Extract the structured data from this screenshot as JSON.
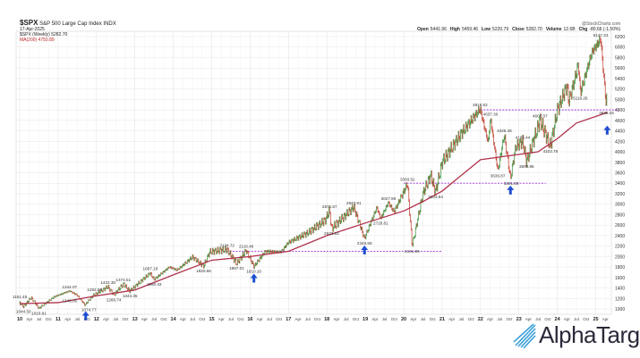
{
  "header": {
    "symbol": "$SPX",
    "name": "S&P 500 Large Cap Index INDX",
    "date": "17-Apr-2025",
    "legend_price": "$SPX (Weekly) 5282.70",
    "legend_ma": "MA(200) 4750.89",
    "source": "@StockCharts.com",
    "ohlc": [
      [
        "Open",
        "5441.96"
      ],
      [
        "High",
        "5459.46"
      ],
      [
        "Low",
        "5220.79"
      ],
      [
        "Close",
        "5282.70"
      ],
      [
        "Volume",
        "12.6B"
      ],
      [
        "Chg",
        "-80.66 (-1.50%)"
      ]
    ]
  },
  "logo": "AlphaTarget",
  "colors": {
    "up": "#2e8b2e",
    "down": "#c0392b",
    "ma": "#b0304a",
    "support": "#9b30d9",
    "arrow": "#1f4fd0"
  },
  "chart_data": {
    "type": "line",
    "title": "$SPX S&P 500 Large Cap Index (Weekly)",
    "ylim": [
      1000,
      6200
    ],
    "yticks": [
      1000,
      1200,
      1400,
      1600,
      1800,
      2000,
      2200,
      2400,
      2600,
      2800,
      3000,
      3200,
      3400,
      3600,
      3800,
      4000,
      4200,
      4400,
      4600,
      4800,
      5000,
      5200,
      5400,
      5600,
      5800,
      6000,
      6200
    ],
    "xlim": [
      2010,
      2025.35
    ],
    "xtick_years": [
      "10",
      "11",
      "12",
      "13",
      "14",
      "15",
      "16",
      "17",
      "18",
      "19",
      "20",
      "21",
      "22",
      "23",
      "24",
      "25"
    ],
    "xtick_months": [
      "Apr",
      "Jul",
      "Oct"
    ],
    "price": [
      [
        2010.0,
        1115
      ],
      [
        2010.1,
        1045
      ],
      [
        2010.3,
        1217
      ],
      [
        2010.5,
        1011
      ],
      [
        2010.9,
        1230
      ],
      [
        2011.3,
        1344
      ],
      [
        2011.5,
        1260
      ],
      [
        2011.7,
        1075
      ],
      [
        2011.9,
        1250
      ],
      [
        2012.3,
        1422
      ],
      [
        2012.45,
        1267
      ],
      [
        2012.7,
        1474
      ],
      [
        2012.87,
        1343
      ],
      [
        2013.4,
        1687
      ],
      [
        2013.5,
        1560
      ],
      [
        2013.9,
        1800
      ],
      [
        2014.1,
        1740
      ],
      [
        2014.5,
        1990
      ],
      [
        2014.79,
        1820
      ],
      [
        2014.95,
        2090
      ],
      [
        2015.4,
        2134
      ],
      [
        2015.65,
        1867
      ],
      [
        2015.9,
        2116
      ],
      [
        2016.1,
        1810
      ],
      [
        2016.4,
        2100
      ],
      [
        2016.8,
        2085
      ],
      [
        2017.0,
        2270
      ],
      [
        2017.5,
        2450
      ],
      [
        2017.95,
        2690
      ],
      [
        2018.07,
        2873
      ],
      [
        2018.12,
        2533
      ],
      [
        2018.7,
        2941
      ],
      [
        2018.98,
        2346
      ],
      [
        2019.3,
        2940
      ],
      [
        2019.4,
        2729
      ],
      [
        2019.6,
        3027
      ],
      [
        2019.75,
        2855
      ],
      [
        2020.1,
        3393
      ],
      [
        2020.22,
        2192
      ],
      [
        2020.5,
        3200
      ],
      [
        2020.7,
        3550
      ],
      [
        2020.83,
        3233
      ],
      [
        2021.0,
        3800
      ],
      [
        2021.5,
        4350
      ],
      [
        2021.99,
        4818
      ],
      [
        2022.2,
        4170
      ],
      [
        2022.26,
        4637
      ],
      [
        2022.45,
        3636
      ],
      [
        2022.62,
        4325
      ],
      [
        2022.78,
        3491
      ],
      [
        2022.92,
        4100
      ],
      [
        2023.1,
        4195
      ],
      [
        2023.2,
        3808
      ],
      [
        2023.55,
        4607
      ],
      [
        2023.82,
        4103
      ],
      [
        2024.0,
        4790
      ],
      [
        2024.25,
        5260
      ],
      [
        2024.3,
        4950
      ],
      [
        2024.55,
        5669
      ],
      [
        2024.6,
        5119
      ],
      [
        2024.9,
        5900
      ],
      [
        2025.13,
        6147
      ],
      [
        2025.28,
        4835
      ],
      [
        2025.3,
        5282
      ]
    ],
    "ma200": [
      [
        2010,
        1100
      ],
      [
        2011,
        1120
      ],
      [
        2012,
        1250
      ],
      [
        2013,
        1360
      ],
      [
        2014,
        1650
      ],
      [
        2015,
        1930
      ],
      [
        2016,
        2000
      ],
      [
        2017,
        2100
      ],
      [
        2018,
        2400
      ],
      [
        2019,
        2640
      ],
      [
        2020,
        2870
      ],
      [
        2020.5,
        3050
      ],
      [
        2021,
        3250
      ],
      [
        2022,
        3850
      ],
      [
        2022.8,
        3930
      ],
      [
        2023.5,
        4000
      ],
      [
        2024,
        4250
      ],
      [
        2024.5,
        4550
      ],
      [
        2025.3,
        4750
      ]
    ],
    "support_lines": [
      {
        "value": 2100,
        "from": 2015.3,
        "to": 2021.0
      },
      {
        "value": 3400,
        "from": 2020.0,
        "to": 2023.7
      },
      {
        "value": 4800,
        "from": 2022.0,
        "to": 2025.6
      }
    ],
    "arrows": [
      2011.72,
      2016.1,
      2018.98,
      2022.78,
      2025.3
    ],
    "annotations": [
      {
        "x": 2010.0,
        "y": 1151.45,
        "text": "1151.45",
        "pos": "above"
      },
      {
        "x": 2010.1,
        "y": 1044.5,
        "text": "1044.50",
        "pos": "below"
      },
      {
        "x": 2010.5,
        "y": 1010.91,
        "text": "1010.91",
        "pos": "below"
      },
      {
        "x": 2011.3,
        "y": 1344.07,
        "text": "1344.07",
        "pos": "above"
      },
      {
        "x": 2011.3,
        "y": 1249.05,
        "text": "1249.05",
        "pos": "below"
      },
      {
        "x": 2011.8,
        "y": 1074.77,
        "text": "1074.77",
        "pos": "below"
      },
      {
        "x": 2011.95,
        "y": 1292.66,
        "text": "1292.66",
        "pos": "above"
      },
      {
        "x": 2012.3,
        "y": 1422.38,
        "text": "1422.38",
        "pos": "above"
      },
      {
        "x": 2012.45,
        "y": 1266.74,
        "text": "1266.74",
        "pos": "below"
      },
      {
        "x": 2012.7,
        "y": 1474.51,
        "text": "1474.51",
        "pos": "above"
      },
      {
        "x": 2012.87,
        "y": 1343.35,
        "text": "1343.35",
        "pos": "below"
      },
      {
        "x": 2013.4,
        "y": 1687.18,
        "text": "1687.18",
        "pos": "above"
      },
      {
        "x": 2013.5,
        "y": 1560.33,
        "text": "1560.33",
        "pos": "below"
      },
      {
        "x": 2014.79,
        "y": 1820.66,
        "text": "1820.66",
        "pos": "below"
      },
      {
        "x": 2015.4,
        "y": 2134.72,
        "text": "2134.72",
        "pos": "above"
      },
      {
        "x": 2015.9,
        "y": 2116.48,
        "text": "2116.48",
        "pos": "above"
      },
      {
        "x": 2015.65,
        "y": 1867.01,
        "text": "1867.01",
        "pos": "below"
      },
      {
        "x": 2016.1,
        "y": 1810.1,
        "text": "1810.10",
        "pos": "below"
      },
      {
        "x": 2018.07,
        "y": 2872.87,
        "text": "2872.87",
        "pos": "above"
      },
      {
        "x": 2018.12,
        "y": 2533.83,
        "text": "2533.83",
        "pos": "below"
      },
      {
        "x": 2018.7,
        "y": 2940.91,
        "text": "2940.91",
        "pos": "above"
      },
      {
        "x": 2018.98,
        "y": 2346.58,
        "text": "2346.58",
        "pos": "below"
      },
      {
        "x": 2019.4,
        "y": 2728.81,
        "text": "2728.81",
        "pos": "below"
      },
      {
        "x": 2019.6,
        "y": 3027.98,
        "text": "3027.98",
        "pos": "above"
      },
      {
        "x": 2020.1,
        "y": 3393.52,
        "text": "3393.52",
        "pos": "above"
      },
      {
        "x": 2020.22,
        "y": 2191.86,
        "text": "2191.86",
        "pos": "below"
      },
      {
        "x": 2020.83,
        "y": 3233.94,
        "text": "3233.94",
        "pos": "below"
      },
      {
        "x": 2021.99,
        "y": 4818.62,
        "text": "4818.62",
        "pos": "above"
      },
      {
        "x": 2022.26,
        "y": 4637.3,
        "text": "4637.30",
        "pos": "above"
      },
      {
        "x": 2022.45,
        "y": 3636.87,
        "text": "3636.87",
        "pos": "below"
      },
      {
        "x": 2022.62,
        "y": 4325.28,
        "text": "4325.28",
        "pos": "above"
      },
      {
        "x": 2022.8,
        "y": 3491.58,
        "text": "3491.58",
        "pos": "below"
      },
      {
        "x": 2023.2,
        "y": 3808.86,
        "text": "3808.86",
        "pos": "below"
      },
      {
        "x": 2023.1,
        "y": 4195.44,
        "text": "4195.44",
        "pos": "above"
      },
      {
        "x": 2023.55,
        "y": 4607.07,
        "text": "4607.07",
        "pos": "above"
      },
      {
        "x": 2023.82,
        "y": 4103.78,
        "text": "4103.78",
        "pos": "below"
      },
      {
        "x": 2024.6,
        "y": 5119.26,
        "text": "5119.26",
        "pos": "below"
      },
      {
        "x": 2025.13,
        "y": 6147.43,
        "text": "6147.43",
        "pos": "above"
      },
      {
        "x": 2025.28,
        "y": 4835.04,
        "text": "4835.04",
        "pos": "below"
      }
    ]
  }
}
